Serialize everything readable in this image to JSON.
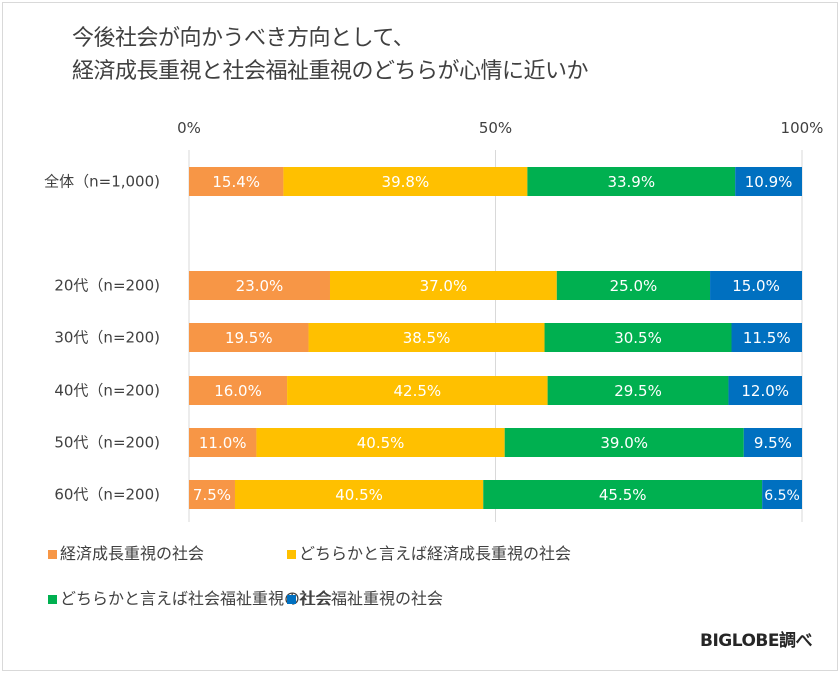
{
  "chart_data": {
    "type": "bar",
    "orientation": "horizontal",
    "stacked": true,
    "percent": true,
    "title": "今後社会が向かうべき方向として、\n経済成長重視と社会福祉重視のどちらが心情に近いか",
    "title_lines": [
      "今後社会が向かうべき方向として、",
      "経済成長重視と社会福祉重視のどちらが心情に近いか"
    ],
    "xlabel": "",
    "ylabel": "",
    "xlim": [
      0,
      100
    ],
    "x_ticks": [
      "0%",
      "50%",
      "100%"
    ],
    "grid": true,
    "legend_position": "bottom",
    "categories": [
      "全体（n=1,000)",
      "20代（n=200)",
      "30代（n=200)",
      "40代（n=200)",
      "50代（n=200)",
      "60代（n=200)"
    ],
    "series": [
      {
        "name": "経済成長重視の社会",
        "color": "#f79646",
        "values": [
          15.4,
          23.0,
          19.5,
          16.0,
          11.0,
          7.5
        ]
      },
      {
        "name": "どちらかと言えば経済成長重視の社会",
        "color": "#ffc000",
        "values": [
          39.8,
          37.0,
          38.5,
          42.5,
          40.5,
          40.5
        ]
      },
      {
        "name": "どちらかと言えば社会福祉重視の社会",
        "color": "#00b050",
        "values": [
          33.9,
          25.0,
          30.5,
          29.5,
          39.0,
          45.5
        ]
      },
      {
        "name": "社会福祉重視の社会",
        "color": "#0070c0",
        "values": [
          10.9,
          15.0,
          11.5,
          12.0,
          9.5,
          6.5
        ]
      }
    ],
    "data_labels": [
      [
        "15.4%",
        "39.8%",
        "33.9%",
        "10.9%"
      ],
      [
        "23.0%",
        "37.0%",
        "25.0%",
        "15.0%"
      ],
      [
        "19.5%",
        "38.5%",
        "30.5%",
        "11.5%"
      ],
      [
        "16.0%",
        "42.5%",
        "29.5%",
        "12.0%"
      ],
      [
        "11.0%",
        "40.5%",
        "39.0%",
        "9.5%"
      ],
      [
        "7.5%",
        "40.5%",
        "45.5%",
        "6.5%"
      ]
    ],
    "source": "BIGLOBE調べ"
  }
}
